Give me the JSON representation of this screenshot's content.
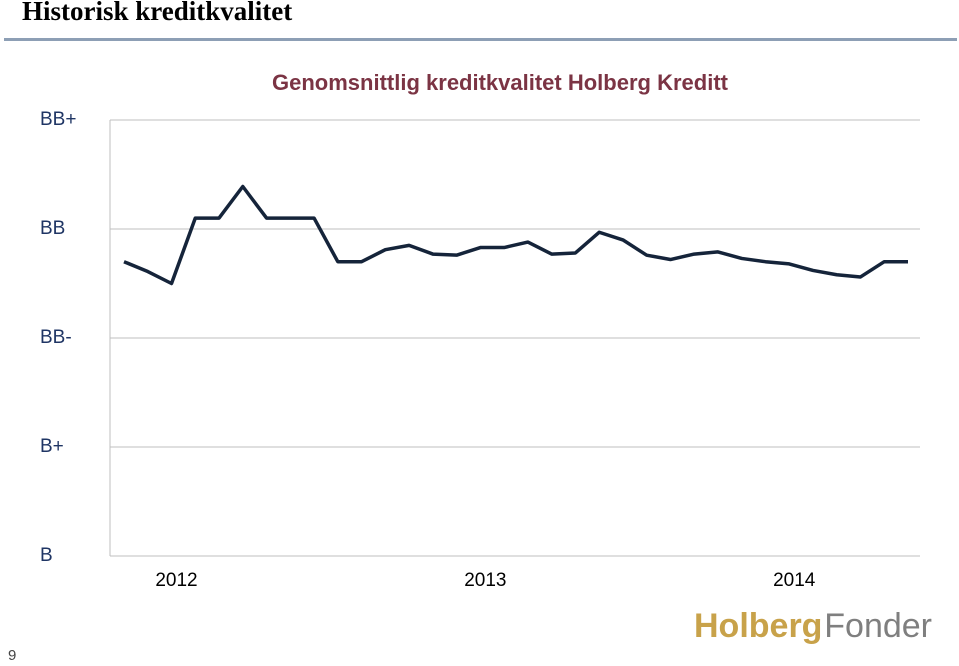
{
  "slide": {
    "title": "Historisk kreditkvalitet",
    "page_number": "9",
    "logo_left": "Holberg",
    "logo_right": "Fonder"
  },
  "chart_data": {
    "type": "line",
    "title": "Genomsnittlig kreditkvalitet Holberg Kreditt",
    "categories": [
      null,
      null,
      "2012",
      null,
      null,
      null,
      null,
      null,
      null,
      null,
      null,
      null,
      null,
      null,
      null,
      "2013",
      null,
      null,
      null,
      null,
      null,
      null,
      null,
      null,
      null,
      null,
      null,
      null,
      "2014",
      null,
      null,
      null,
      null,
      null
    ],
    "series": [
      {
        "name": "Holberg Kreditt",
        "color": "#15243a",
        "values": [
          2.7,
          2.61,
          2.5,
          3.1,
          3.1,
          3.39,
          3.1,
          3.1,
          3.1,
          2.7,
          2.7,
          2.81,
          2.85,
          2.77,
          2.76,
          2.83,
          2.83,
          2.88,
          2.77,
          2.78,
          2.97,
          2.9,
          2.76,
          2.72,
          2.77,
          2.79,
          2.73,
          2.7,
          2.68,
          2.62,
          2.58,
          2.56,
          2.7,
          2.7
        ]
      }
    ],
    "ylim": [
      0,
      4
    ],
    "yticks": [
      {
        "value": 0,
        "label": "B"
      },
      {
        "value": 1,
        "label": "B+"
      },
      {
        "value": 2,
        "label": "BB-"
      },
      {
        "value": 3,
        "label": "BB"
      },
      {
        "value": 4,
        "label": "BB+"
      }
    ],
    "grid": true
  }
}
